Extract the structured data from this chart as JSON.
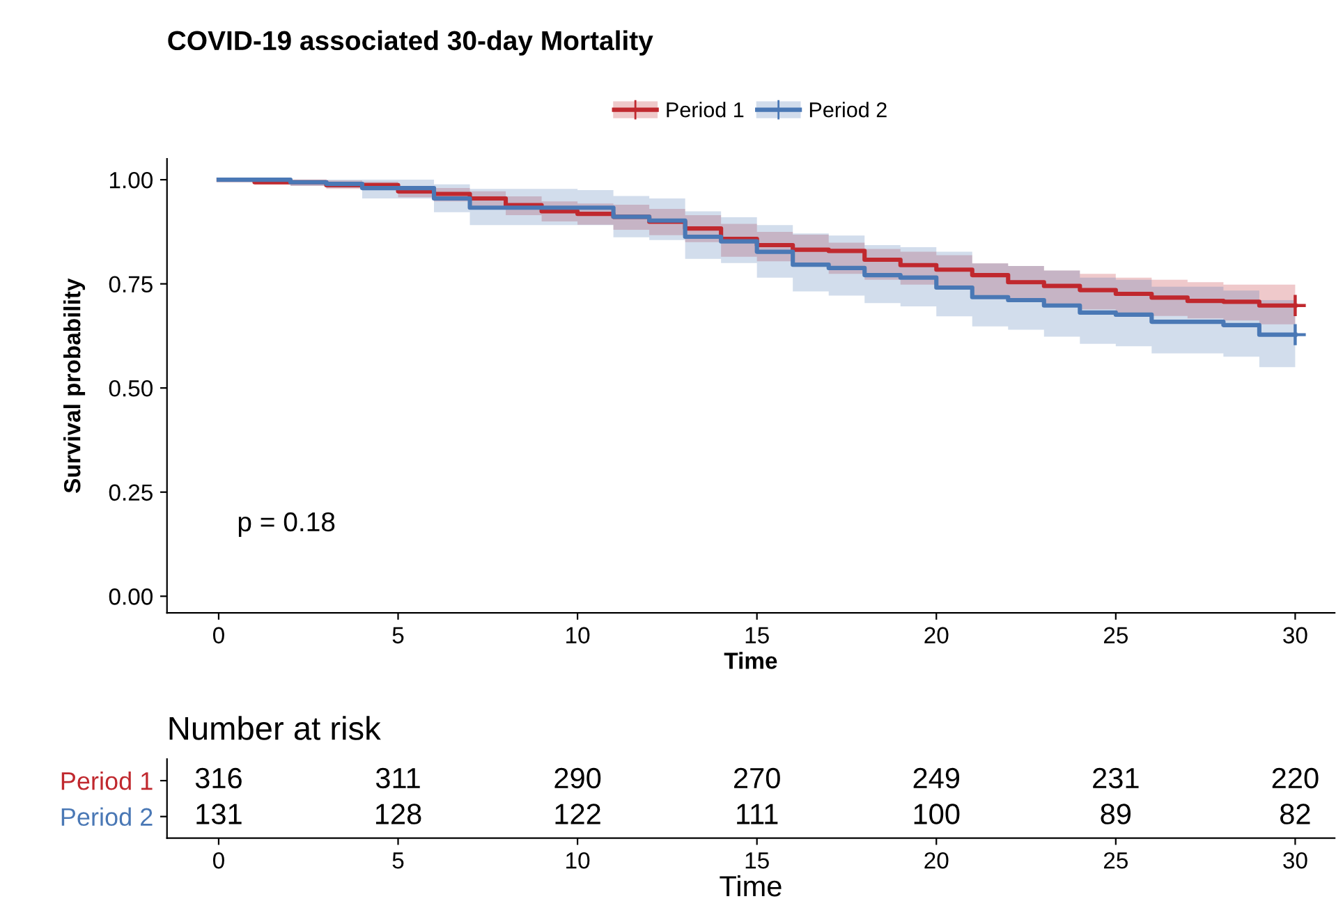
{
  "chart_data": [
    {
      "type": "step",
      "title": "COVID-19 associated 30-day Mortality",
      "xlabel": "Time",
      "ylabel": "Survival probability",
      "xlim": [
        -1.44,
        31.1
      ],
      "ylim": [
        -0.04,
        1.05
      ],
      "xticks": [
        0,
        5,
        10,
        15,
        20,
        25,
        30
      ],
      "yticks": [
        {
          "value": 0,
          "label": "0.00"
        },
        {
          "value": 0.25,
          "label": "0.25"
        },
        {
          "value": 0.5,
          "label": "0.50"
        },
        {
          "value": 0.75,
          "label": "0.75"
        },
        {
          "value": 1,
          "label": "1.00"
        }
      ],
      "legend": "top",
      "grid": false,
      "annotations": [
        "p = 0.18"
      ],
      "series": [
        {
          "name": "Period 1",
          "color": "#c0282e",
          "x": [
            0,
            1,
            2,
            3,
            4,
            5,
            6,
            7,
            8,
            9,
            10,
            11,
            12,
            13,
            14,
            15,
            16,
            17,
            18,
            19,
            20,
            21,
            22,
            23,
            24,
            25,
            26,
            27,
            28,
            29,
            30
          ],
          "values": [
            1.0,
            0.994,
            0.994,
            0.987,
            0.987,
            0.972,
            0.966,
            0.955,
            0.939,
            0.924,
            0.918,
            0.911,
            0.899,
            0.883,
            0.858,
            0.843,
            0.832,
            0.829,
            0.808,
            0.795,
            0.784,
            0.771,
            0.754,
            0.745,
            0.735,
            0.726,
            0.717,
            0.709,
            0.707,
            0.698,
            0.698
          ],
          "upper": [
            1.0,
            1.0,
            1.0,
            0.998,
            0.995,
            0.985,
            0.98,
            0.972,
            0.96,
            0.948,
            0.943,
            0.94,
            0.93,
            0.915,
            0.894,
            0.875,
            0.868,
            0.849,
            0.834,
            0.827,
            0.819,
            0.799,
            0.793,
            0.782,
            0.774,
            0.765,
            0.76,
            0.754,
            0.748,
            0.748,
            0.748
          ],
          "lower": [
            1.0,
            0.988,
            0.985,
            0.978,
            0.975,
            0.958,
            0.948,
            0.935,
            0.915,
            0.9,
            0.892,
            0.88,
            0.867,
            0.85,
            0.815,
            0.804,
            0.793,
            0.774,
            0.76,
            0.748,
            0.737,
            0.72,
            0.711,
            0.7,
            0.689,
            0.681,
            0.673,
            0.667,
            0.662,
            0.653,
            0.653
          ]
        },
        {
          "name": "Period 2",
          "color": "#4a78b5",
          "x": [
            0,
            1,
            2,
            3,
            4,
            5,
            6,
            7,
            8,
            9,
            10,
            11,
            12,
            13,
            14,
            15,
            16,
            17,
            18,
            19,
            20,
            21,
            22,
            23,
            24,
            25,
            26,
            27,
            28,
            29,
            30
          ],
          "values": [
            1.0,
            1.0,
            0.994,
            0.99,
            0.98,
            0.98,
            0.955,
            0.933,
            0.933,
            0.933,
            0.933,
            0.911,
            0.902,
            0.863,
            0.852,
            0.827,
            0.796,
            0.788,
            0.771,
            0.765,
            0.741,
            0.718,
            0.711,
            0.698,
            0.681,
            0.676,
            0.659,
            0.659,
            0.651,
            0.628,
            0.628
          ],
          "upper": [
            1.0,
            1.0,
            1.0,
            1.0,
            1.0,
            1.0,
            0.989,
            0.978,
            0.978,
            0.978,
            0.975,
            0.961,
            0.955,
            0.924,
            0.91,
            0.891,
            0.871,
            0.866,
            0.843,
            0.838,
            0.827,
            0.799,
            0.793,
            0.782,
            0.765,
            0.76,
            0.743,
            0.743,
            0.734,
            0.711,
            0.711
          ],
          "lower": [
            1.0,
            1.0,
            0.985,
            0.98,
            0.955,
            0.955,
            0.922,
            0.891,
            0.891,
            0.891,
            0.891,
            0.862,
            0.855,
            0.81,
            0.8,
            0.765,
            0.732,
            0.722,
            0.704,
            0.696,
            0.672,
            0.648,
            0.64,
            0.623,
            0.606,
            0.6,
            0.583,
            0.583,
            0.575,
            0.55,
            0.55
          ]
        },
        {
          "type": "scatter",
          "color": "#c0282e",
          "marker": "cross",
          "x": [
            30
          ],
          "values": [
            0.698
          ]
        },
        {
          "type": "scatter",
          "color": "#4a78b5",
          "marker": "cross",
          "x": [
            30
          ],
          "values": [
            0.628
          ]
        }
      ]
    },
    {
      "type": "heatmap",
      "title": "Number at risk",
      "xlabel": "Time",
      "categories": [
        "0",
        "5",
        "10",
        "15",
        "20",
        "25",
        "30"
      ],
      "y_categories": [
        "Period 1",
        "Period 2"
      ],
      "colors": [
        "#c0282e",
        "#4a78b5"
      ],
      "data_labels": true,
      "cells": [
        [
          316,
          311,
          290,
          270,
          249,
          231,
          220
        ],
        [
          131,
          128,
          122,
          111,
          100,
          89,
          82
        ]
      ]
    }
  ]
}
